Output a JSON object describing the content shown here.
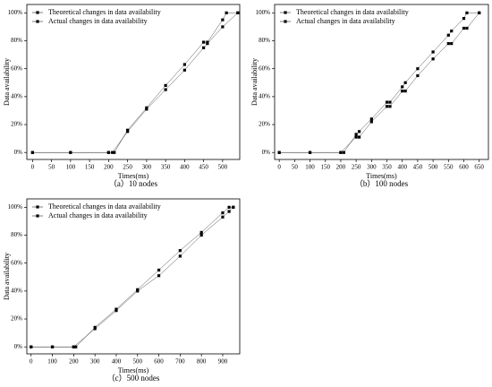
{
  "chart_data": [
    {
      "type": "line",
      "caption": "（a）10 nodes",
      "x_label": "Times(ms)",
      "y_label": "Data availability",
      "xlim": [
        -15,
        545
      ],
      "xticks": [
        0,
        50,
        100,
        150,
        200,
        250,
        300,
        350,
        400,
        450,
        500
      ],
      "ylim": [
        -5,
        106
      ],
      "yticks": [
        {
          "value": 0,
          "label": "0%"
        },
        {
          "value": 20,
          "label": "20%"
        },
        {
          "value": 40,
          "label": "40%"
        },
        {
          "value": 60,
          "label": "60%"
        },
        {
          "value": 80,
          "label": "80%"
        },
        {
          "value": 100,
          "label": "100%"
        }
      ],
      "legend": "upper left",
      "series": [
        {
          "name": "Theoretical changes in data availability",
          "color": "#000000",
          "x": [
            0,
            100,
            200,
            215,
            250,
            300,
            350,
            400,
            450,
            460,
            500,
            510,
            540
          ],
          "values": [
            0,
            0,
            0,
            0,
            16,
            32,
            48,
            63,
            79,
            79,
            95,
            100,
            100
          ]
        },
        {
          "name": "Actual changes in data availability",
          "color": "#000000",
          "x": [
            0,
            100,
            200,
            210,
            250,
            300,
            350,
            400,
            450,
            460,
            500,
            540
          ],
          "values": [
            0,
            0,
            0,
            0,
            15,
            31,
            45,
            59,
            75,
            78,
            90,
            100
          ]
        }
      ]
    },
    {
      "type": "line",
      "caption": "（b）100 nodes",
      "x_label": "Times(ms)",
      "y_label": "Data availability",
      "xlim": [
        -15,
        680
      ],
      "xticks": [
        0,
        50,
        100,
        150,
        200,
        250,
        300,
        350,
        400,
        450,
        500,
        550,
        600,
        650
      ],
      "ylim": [
        -5,
        106
      ],
      "yticks": [
        {
          "value": 0,
          "label": "0%"
        },
        {
          "value": 20,
          "label": "20%"
        },
        {
          "value": 40,
          "label": "40%"
        },
        {
          "value": 60,
          "label": "60%"
        },
        {
          "value": 80,
          "label": "80%"
        },
        {
          "value": 100,
          "label": "100%"
        }
      ],
      "legend": "upper left",
      "series": [
        {
          "name": "Theoretical changes in data availability",
          "color": "#000000",
          "x": [
            0,
            100,
            200,
            210,
            250,
            260,
            300,
            350,
            360,
            400,
            410,
            450,
            500,
            550,
            560,
            600,
            610,
            650
          ],
          "values": [
            0,
            0,
            0,
            0,
            13,
            15,
            24,
            36,
            36,
            47,
            50,
            60,
            72,
            84,
            87,
            96,
            100,
            100
          ]
        },
        {
          "name": "Actual changes in data availability",
          "color": "#000000",
          "x": [
            0,
            100,
            200,
            250,
            260,
            300,
            350,
            360,
            400,
            410,
            450,
            500,
            550,
            560,
            600,
            610,
            650
          ],
          "values": [
            0,
            0,
            0,
            11,
            11,
            22,
            33,
            33,
            44,
            44,
            55,
            67,
            78,
            78,
            89,
            89,
            100
          ]
        }
      ]
    },
    {
      "type": "line",
      "caption": "（c）500 nodes",
      "x_label": "Times(ms)",
      "y_label": "Data availability",
      "xlim": [
        -20,
        980
      ],
      "xticks": [
        0,
        100,
        200,
        300,
        400,
        500,
        600,
        700,
        800,
        900
      ],
      "ylim": [
        -5,
        106
      ],
      "yticks": [
        {
          "value": 0,
          "label": "0%"
        },
        {
          "value": 20,
          "label": "20%"
        },
        {
          "value": 40,
          "label": "40%"
        },
        {
          "value": 60,
          "label": "60%"
        },
        {
          "value": 80,
          "label": "80%"
        },
        {
          "value": 100,
          "label": "100%"
        }
      ],
      "legend": "upper left",
      "series": [
        {
          "name": "Theoretical changes in data availability",
          "color": "#000000",
          "x": [
            0,
            100,
            200,
            210,
            300,
            400,
            500,
            600,
            700,
            800,
            900,
            930,
            950
          ],
          "values": [
            0,
            0,
            0,
            0,
            14,
            27,
            41,
            55,
            69,
            82,
            96,
            100,
            100
          ]
        },
        {
          "name": "Actual changes in data availability",
          "color": "#000000",
          "x": [
            0,
            100,
            200,
            300,
            400,
            500,
            600,
            700,
            800,
            900,
            930,
            950
          ],
          "values": [
            0,
            0,
            0,
            13,
            26,
            40,
            51,
            65,
            80,
            93,
            97,
            100
          ]
        }
      ]
    }
  ]
}
